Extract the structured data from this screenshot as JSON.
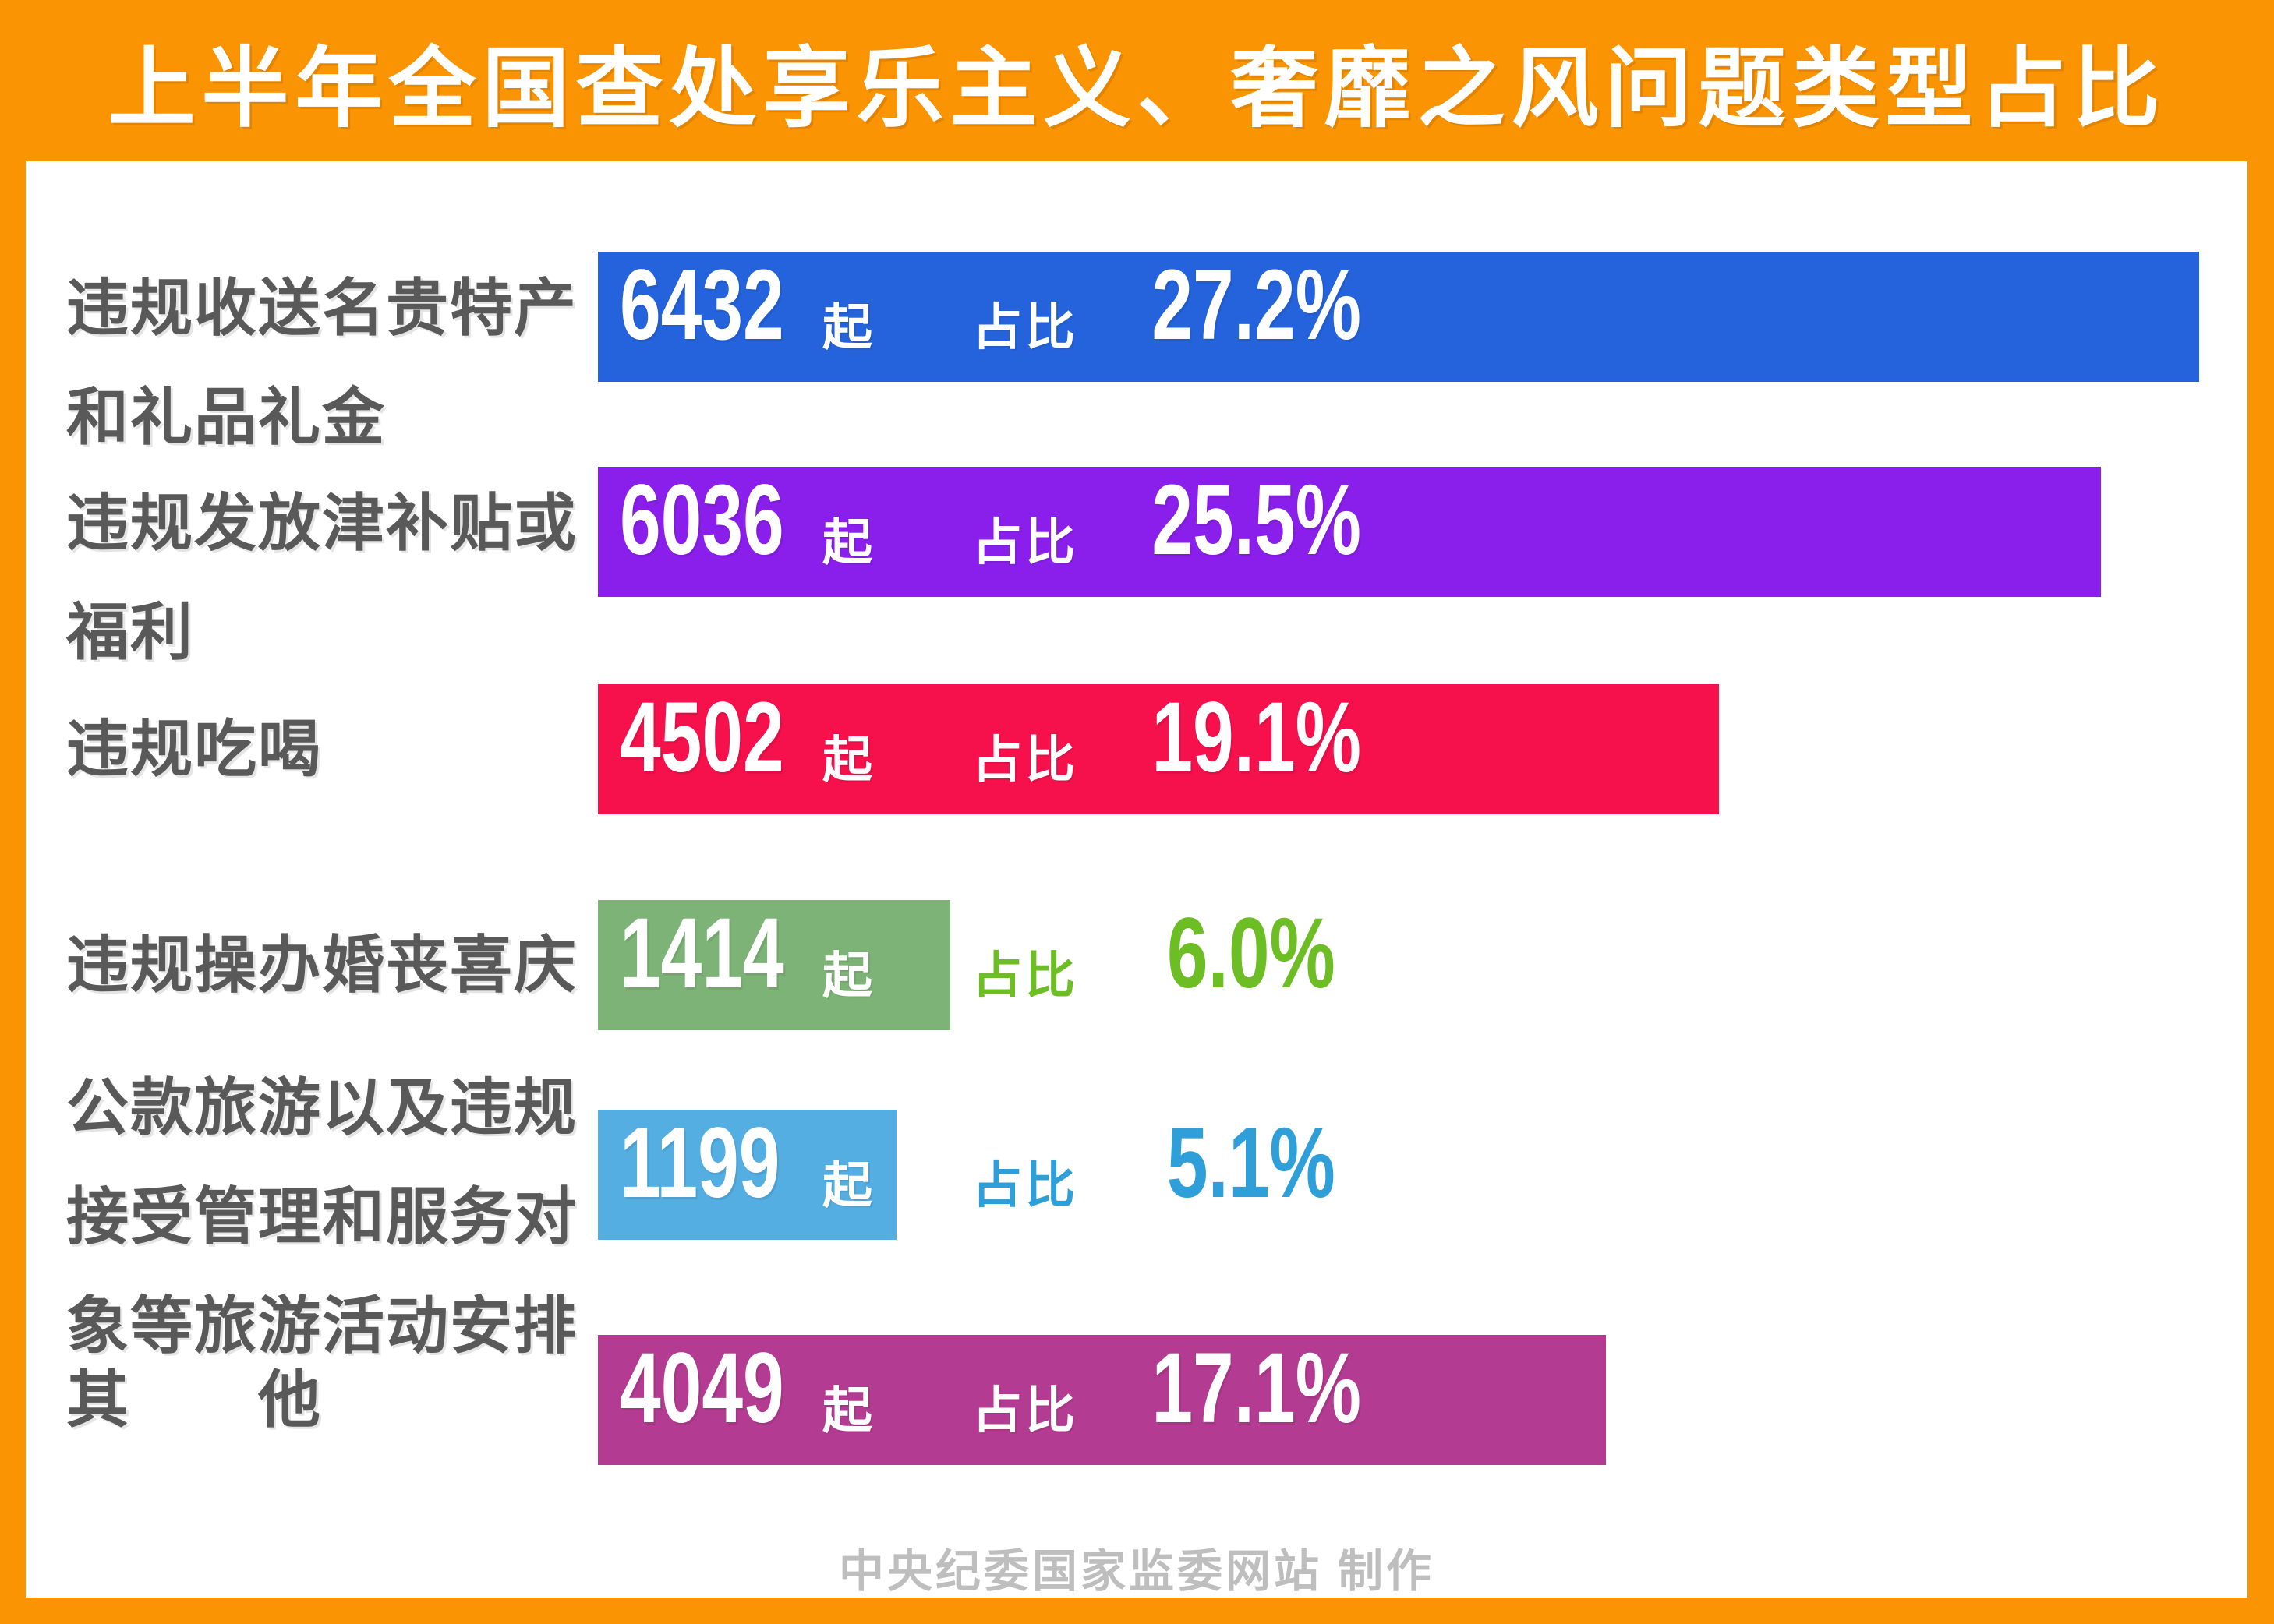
{
  "title": "上半年全国查处享乐主义、奢靡之风问题类型占比",
  "footer": "中央纪委国家监委网站 制作",
  "colors": {
    "frame_orange": "#FB9403",
    "panel_bg": "#FFFFFF",
    "label_gray": "#595959",
    "footer_gray": "#BEBEBE",
    "bar_inner_text": "#FFFFFF"
  },
  "chart_data": {
    "type": "bar",
    "orientation": "horizontal",
    "title": "上半年全国查处享乐主义、奢靡之风问题类型占比",
    "unit_label": "起",
    "ratio_prefix": "占比",
    "max_value": 6432,
    "grid": false,
    "categories": [
      "违规收送名贵特产和礼品礼金",
      "违规发放津补贴或福利",
      "违规吃喝",
      "违规操办婚丧喜庆",
      "公款旅游以及违规接受管理和服务对象等旅游活动安排",
      "其他"
    ],
    "values": [
      6432,
      6036,
      4502,
      1414,
      1199,
      4049
    ],
    "percents": [
      "27.2%",
      "25.5%",
      "19.1%",
      "6.0%",
      "5.1%",
      "17.1%"
    ],
    "items": [
      {
        "label": "违规收送名贵特产\n和礼品礼金",
        "value": "6432",
        "percent": "27.2%",
        "bar_color": "#2563DC",
        "ratio_inside_bar": true,
        "outside_text_color": null
      },
      {
        "label": "违规发放津补贴或\n福利",
        "value": "6036",
        "percent": "25.5%",
        "bar_color": "#8A1FEC",
        "ratio_inside_bar": true,
        "outside_text_color": null
      },
      {
        "label": "违规吃喝",
        "value": "4502",
        "percent": "19.1%",
        "bar_color": "#F6114D",
        "ratio_inside_bar": true,
        "outside_text_color": null
      },
      {
        "label": "违规操办婚丧喜庆",
        "value": "1414",
        "percent": "6.0%",
        "bar_color": "#7EB377",
        "ratio_inside_bar": false,
        "outside_text_color": "#6CBE24"
      },
      {
        "label": "公款旅游以及违规\n接受管理和服务对\n象等旅游活动安排",
        "value": "1199",
        "percent": "5.1%",
        "bar_color": "#54AEE2",
        "ratio_inside_bar": false,
        "outside_text_color": "#2E9FD8"
      },
      {
        "label": "其　　他",
        "value": "4049",
        "percent": "17.1%",
        "bar_color": "#B33B92",
        "ratio_inside_bar": true,
        "outside_text_color": null
      }
    ]
  }
}
